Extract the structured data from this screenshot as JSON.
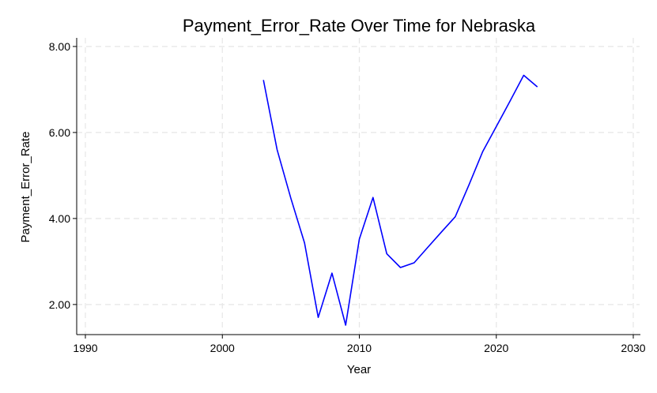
{
  "chart_data": {
    "type": "line",
    "title": "Payment_Error_Rate Over Time for Nebraska",
    "xlabel": "Year",
    "ylabel": "Payment_Error_Rate",
    "xlim": [
      1990,
      2030
    ],
    "ylim": [
      1.3,
      8.2
    ],
    "xticks": [
      1990,
      2000,
      2010,
      2020,
      2030
    ],
    "xtick_labels": [
      "1990",
      "2000",
      "2010",
      "2020",
      "2030"
    ],
    "yticks": [
      2,
      4,
      6,
      8
    ],
    "ytick_labels": [
      "2.00",
      "4.00",
      "6.00",
      "8.00"
    ],
    "grid": true,
    "colors": {
      "series": "#0000ff",
      "grid": "#e6e6e6",
      "axis": "#000000"
    },
    "series": [
      {
        "x": [
          2003,
          2004,
          2005,
          2006,
          2007,
          2008,
          2009,
          2010,
          2011,
          2012,
          2013,
          2014,
          2015,
          2016,
          2017,
          2018,
          2019,
          2020,
          2021,
          2022,
          2023
        ],
        "y": [
          7.22,
          5.6,
          4.47,
          3.43,
          1.7,
          2.73,
          1.52,
          3.52,
          4.49,
          3.18,
          2.86,
          2.97,
          3.33,
          3.69,
          4.04,
          4.78,
          5.55,
          6.14,
          6.73,
          7.33,
          7.06
        ]
      }
    ]
  }
}
